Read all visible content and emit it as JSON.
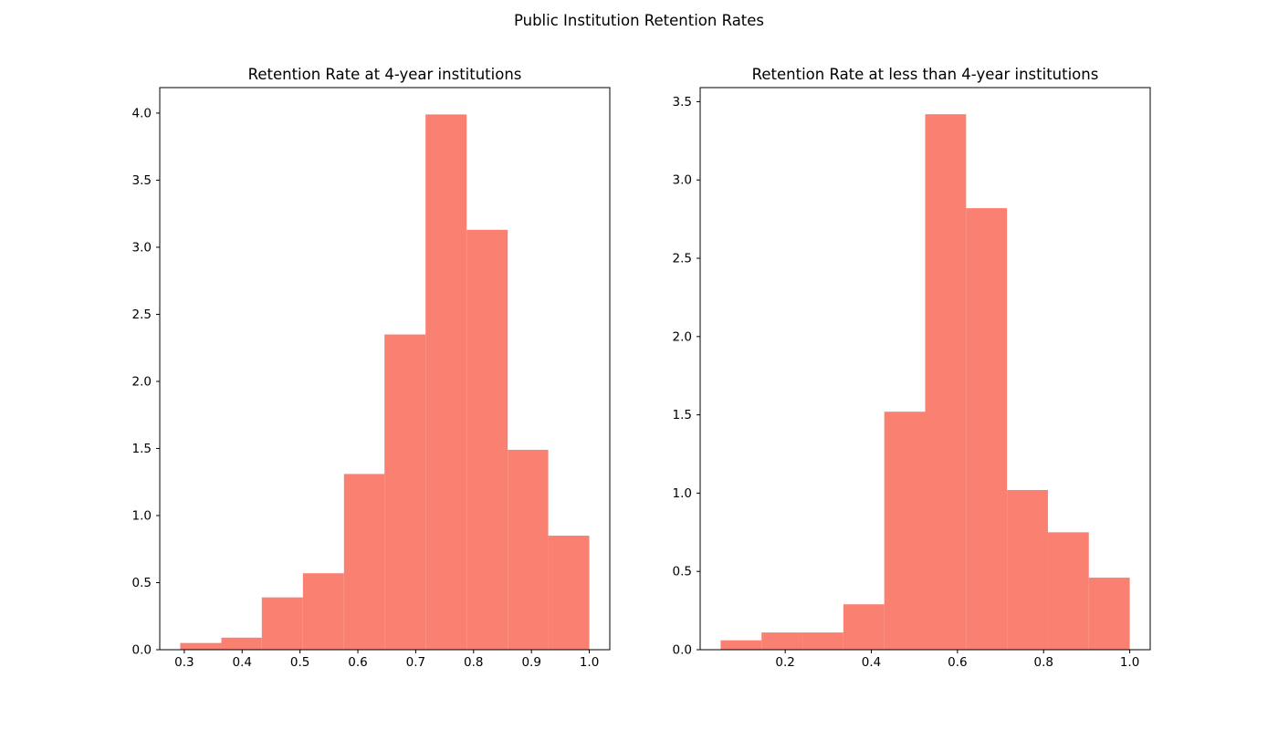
{
  "figure": {
    "title": "Public Institution Retention Rates",
    "background_color": "#ffffff",
    "bar_color": "#FA8072",
    "spine_color": "#000000",
    "text_color": "#000000"
  },
  "chart_data": [
    {
      "type": "bar",
      "subtype": "histogram",
      "title": "Retention Rate at 4-year institutions",
      "xlabel": "",
      "ylabel": "",
      "grid": false,
      "legend": null,
      "bin_edges": [
        0.293,
        0.364,
        0.434,
        0.505,
        0.576,
        0.646,
        0.717,
        0.788,
        0.859,
        0.929,
        1.0
      ],
      "values": [
        0.05,
        0.09,
        0.39,
        0.57,
        1.31,
        2.35,
        3.99,
        3.13,
        1.49,
        0.85
      ],
      "xlim": [
        0.2576,
        1.0354
      ],
      "ylim": [
        0,
        4.19
      ],
      "xticks": [
        0.3,
        0.4,
        0.5,
        0.6,
        0.7,
        0.8,
        0.9,
        1.0
      ],
      "yticks": [
        0.0,
        0.5,
        1.0,
        1.5,
        2.0,
        2.5,
        3.0,
        3.5,
        4.0
      ]
    },
    {
      "type": "bar",
      "subtype": "histogram",
      "title": "Retention Rate at less than 4-year institutions",
      "xlabel": "",
      "ylabel": "",
      "grid": false,
      "legend": null,
      "bin_edges": [
        0.05,
        0.145,
        0.24,
        0.335,
        0.43,
        0.525,
        0.62,
        0.715,
        0.81,
        0.905,
        1.0
      ],
      "values": [
        0.06,
        0.11,
        0.11,
        0.29,
        1.52,
        3.42,
        2.82,
        1.02,
        0.75,
        0.46
      ],
      "xlim": [
        0.0025,
        1.0475
      ],
      "ylim": [
        0,
        3.59
      ],
      "xticks": [
        0.2,
        0.4,
        0.6,
        0.8,
        1.0
      ],
      "yticks": [
        0.0,
        0.5,
        1.0,
        1.5,
        2.0,
        2.5,
        3.0,
        3.5
      ]
    }
  ]
}
